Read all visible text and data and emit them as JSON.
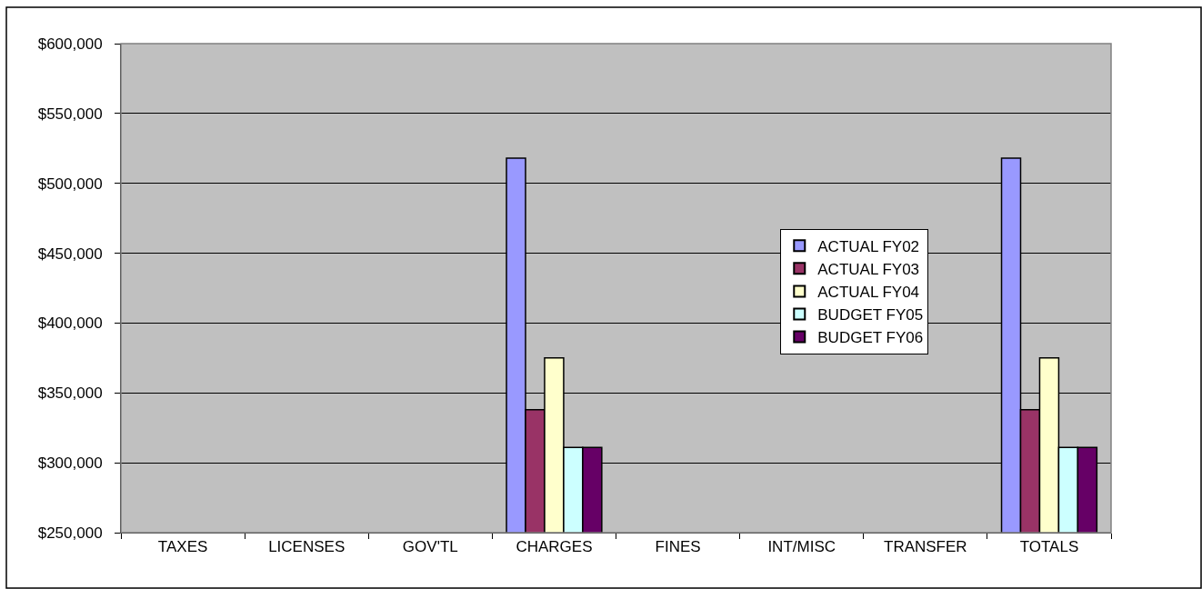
{
  "chart_data": {
    "type": "bar",
    "categories": [
      "TAXES",
      "LICENSES",
      "GOV'TL",
      "CHARGES",
      "FINES",
      "INT/MISC",
      "TRANSFER",
      "TOTALS"
    ],
    "series": [
      {
        "name": "ACTUAL FY02",
        "color": "#9999ff",
        "values": [
          null,
          null,
          null,
          518000,
          null,
          null,
          null,
          518000
        ]
      },
      {
        "name": "ACTUAL FY03",
        "color": "#993366",
        "values": [
          null,
          null,
          null,
          338000,
          null,
          null,
          null,
          338000
        ]
      },
      {
        "name": "ACTUAL FY04",
        "color": "#ffffcc",
        "values": [
          null,
          null,
          null,
          375000,
          null,
          null,
          null,
          375000
        ]
      },
      {
        "name": "BUDGET FY05",
        "color": "#ccffff",
        "values": [
          null,
          null,
          null,
          311000,
          null,
          null,
          null,
          311000
        ]
      },
      {
        "name": "BUDGET FY06",
        "color": "#660066",
        "values": [
          null,
          null,
          null,
          311000,
          null,
          null,
          null,
          311000
        ]
      }
    ],
    "ylim": [
      250000,
      600000
    ],
    "yticks": [
      {
        "value": 250000,
        "label": "$250,000"
      },
      {
        "value": 300000,
        "label": "$300,000"
      },
      {
        "value": 350000,
        "label": "$350,000"
      },
      {
        "value": 400000,
        "label": "$400,000"
      },
      {
        "value": 450000,
        "label": "$450,000"
      },
      {
        "value": 500000,
        "label": "$500,000"
      },
      {
        "value": 550000,
        "label": "$550,000"
      },
      {
        "value": 600000,
        "label": "$600,000"
      }
    ],
    "grid": "y",
    "legend": "right"
  }
}
